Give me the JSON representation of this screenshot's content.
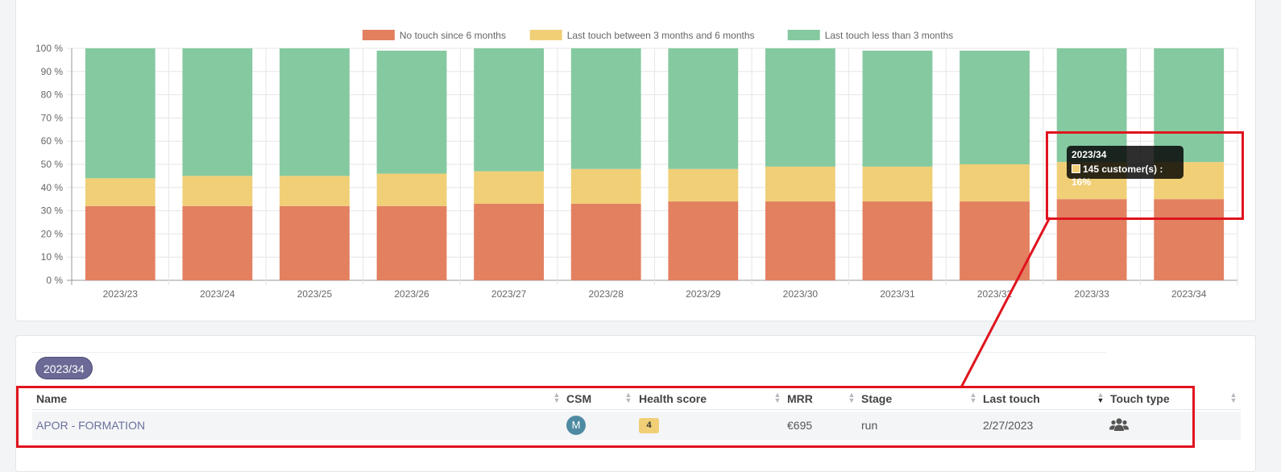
{
  "chart_data": {
    "type": "bar",
    "stacked": true,
    "categories": [
      "2023/23",
      "2023/24",
      "2023/25",
      "2023/26",
      "2023/27",
      "2023/28",
      "2023/29",
      "2023/30",
      "2023/31",
      "2023/32",
      "2023/33",
      "2023/34"
    ],
    "series": [
      {
        "name": "No touch since 6 months",
        "color": "#e38060",
        "values": [
          32,
          32,
          32,
          32,
          33,
          33,
          34,
          34,
          34,
          34,
          35,
          35
        ]
      },
      {
        "name": "Last touch between 3 months and 6 months",
        "color": "#f0cf77",
        "values": [
          12,
          13,
          13,
          14,
          14,
          15,
          14,
          15,
          15,
          16,
          16,
          16
        ]
      },
      {
        "name": "Last touch less than 3 months",
        "color": "#85c9a0",
        "values": [
          56,
          55,
          55,
          53,
          53,
          52,
          52,
          51,
          50,
          49,
          49,
          49
        ]
      }
    ],
    "y_ticks": [
      "0 %",
      "10 %",
      "20 %",
      "30 %",
      "40 %",
      "50 %",
      "60 %",
      "70 %",
      "80 %",
      "90 %",
      "100 %"
    ],
    "ylim": [
      0,
      100
    ],
    "grid": true,
    "legend_position": "top",
    "tooltip": {
      "title": "2023/34",
      "text": "145 customer(s) : 16%",
      "color": "#f0cf77"
    }
  },
  "period_badge": "2023/34",
  "table": {
    "headers": [
      "Name",
      "CSM",
      "Health score",
      "MRR",
      "Stage",
      "Last touch",
      "Touch type"
    ],
    "rows": [
      {
        "name": "APOR - FORMATION",
        "csm": "M",
        "health": "4",
        "mrr": "€695",
        "stage": "run",
        "last_touch": "2/27/2023",
        "touch_type": "users-icon"
      }
    ]
  },
  "annotation_color": "#e0141e"
}
